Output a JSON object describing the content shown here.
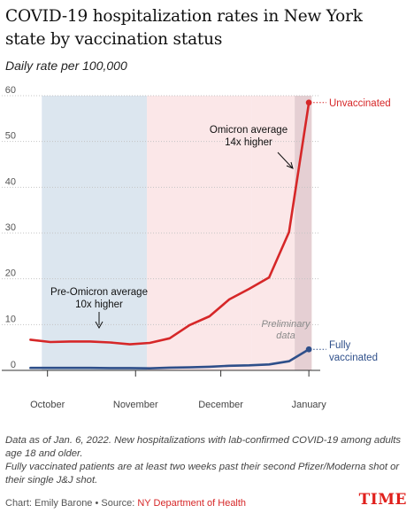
{
  "title": "COVID-19 hospitalization rates in New York state by vaccination status",
  "subtitle": "Daily rate per 100,000",
  "chart_data": {
    "type": "line",
    "x": [
      "2021-09-25",
      "2021-10-02",
      "2021-10-09",
      "2021-10-16",
      "2021-10-23",
      "2021-10-30",
      "2021-11-06",
      "2021-11-13",
      "2021-11-20",
      "2021-11-27",
      "2021-12-04",
      "2021-12-11",
      "2021-12-18",
      "2021-12-25",
      "2022-01-01"
    ],
    "xlim": [
      "2021-09-23",
      "2022-01-05"
    ],
    "x_ticks": [
      {
        "date": "2021-10-01",
        "label": "October"
      },
      {
        "date": "2021-11-01",
        "label": "November"
      },
      {
        "date": "2021-12-01",
        "label": "December"
      },
      {
        "date": "2022-01-01",
        "label": "January"
      }
    ],
    "ylim": [
      0,
      60
    ],
    "y_ticks": [
      0,
      10,
      20,
      30,
      40,
      50,
      60
    ],
    "grid": "horizontal",
    "series": [
      {
        "name": "Unvaccinated",
        "color": "#d62728",
        "values": [
          6.7,
          6.2,
          6.3,
          6.3,
          6.1,
          5.7,
          6.0,
          7.0,
          9.9,
          11.8,
          15.5,
          17.8,
          20.3,
          30.2,
          58.5
        ]
      },
      {
        "name": "Fully vaccinated",
        "color": "#2e4f8a",
        "values": [
          0.55,
          0.55,
          0.55,
          0.55,
          0.5,
          0.5,
          0.45,
          0.6,
          0.65,
          0.8,
          1.0,
          1.1,
          1.3,
          2.0,
          4.6
        ]
      }
    ],
    "bands": [
      {
        "start": "2021-09-29",
        "end": "2021-11-05",
        "color": "#dce6ef"
      },
      {
        "start": "2021-11-05",
        "end": "2021-12-12",
        "color": "#fbe7e8"
      },
      {
        "start": "2021-12-12",
        "end": "2021-12-27",
        "color": "#fbe7e8"
      },
      {
        "start": "2021-12-27",
        "end": "2022-01-02",
        "color": "#e5cfd3"
      }
    ],
    "annotations": [
      {
        "id": "pre",
        "lines": [
          "Pre-Omicron average",
          "10x higher"
        ]
      },
      {
        "id": "omi",
        "lines": [
          "Omicron average",
          "14x higher"
        ]
      },
      {
        "id": "prelim",
        "lines": [
          "Preliminary",
          "data"
        ]
      }
    ],
    "series_labels": [
      {
        "series": "Unvaccinated",
        "lines": [
          "Unvaccinated"
        ]
      },
      {
        "series": "Fully vaccinated",
        "lines": [
          "Fully",
          "vaccinated"
        ]
      }
    ]
  },
  "footnotes": [
    "Data as of Jan. 6, 2022. New hospitalizations with lab-confirmed COVID-19 among adults age 18 and older.",
    "Fully vaccinated patients are at least two weeks past their second Pfizer/Moderna shot or their single J&J shot."
  ],
  "credit": {
    "prefix": "Chart: Emily Barone • Source: ",
    "source": "NY Department of Health"
  },
  "brand": "TIME"
}
